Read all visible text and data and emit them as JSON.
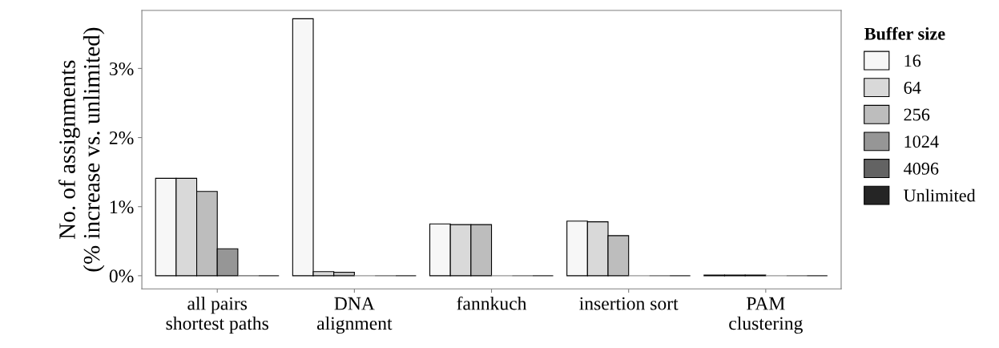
{
  "chart_data": {
    "type": "bar",
    "ylabel": "No. of assignments\n(% increase vs. unlimited)",
    "legend_title": "Buffer size",
    "categories": [
      "all pairs\nshortest paths",
      "DNA\nalignment",
      "fannkuch",
      "insertion sort",
      "PAM\nclustering"
    ],
    "series": [
      {
        "name": "16",
        "color": "#f7f7f7",
        "values": [
          1.41,
          3.72,
          0.75,
          0.79,
          0.01
        ]
      },
      {
        "name": "64",
        "color": "#d9d9d9",
        "values": [
          1.41,
          0.06,
          0.74,
          0.78,
          0.01
        ]
      },
      {
        "name": "256",
        "color": "#bdbdbd",
        "values": [
          1.22,
          0.05,
          0.74,
          0.58,
          0.01
        ]
      },
      {
        "name": "1024",
        "color": "#969696",
        "values": [
          0.39,
          0,
          0,
          0,
          0
        ]
      },
      {
        "name": "4096",
        "color": "#636363",
        "values": [
          0,
          0,
          0,
          0,
          0
        ]
      },
      {
        "name": "Unlimited",
        "color": "#252525",
        "values": [
          0,
          0,
          0,
          0,
          0
        ]
      }
    ],
    "ylim": [
      -0.19,
      3.84
    ],
    "yticks": [
      {
        "value": 0,
        "label": "0%"
      },
      {
        "value": 1,
        "label": "1%"
      },
      {
        "value": 2,
        "label": "2%"
      },
      {
        "value": 3,
        "label": "3%"
      }
    ],
    "grid": false,
    "legend": "right"
  }
}
